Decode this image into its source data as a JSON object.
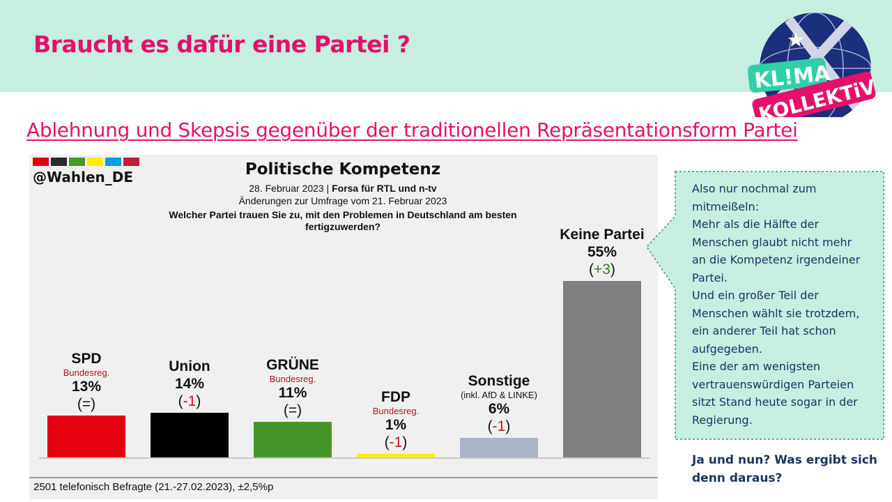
{
  "slide": {
    "title": "Braucht es dafür eine Partei ?",
    "subtitle": "Ablehnung und Skepsis gegenüber der traditionellen Repräsentationsform Partei",
    "logo_line1": "KL!MA",
    "logo_line2": "KOLLEKTiV",
    "callout_lines": [
      "Also nur nochmal zum",
      "mitmeißeln:",
      "Mehr als die Hälfte der",
      "Menschen glaubt nicht mehr",
      "an die Kompetenz irgendeiner",
      "Partei.",
      "Und ein großer Teil der",
      "Menschen wählt sie trotzdem,",
      "ein anderer Teil hat schon",
      "aufgegeben.",
      "Eine der am wenigsten",
      "vertrauenswürdigen Parteien",
      "sitzt Stand heute sogar in der",
      "Regierung."
    ],
    "final_question": "Ja und nun? Was ergibt sich denn daraus?"
  },
  "chart_data": {
    "type": "bar",
    "handle": "@Wahlen_DE",
    "flag_colors": [
      "#e3000f",
      "#2b2b2b",
      "#46962b",
      "#ffed00",
      "#009ee0",
      "#be1e3c"
    ],
    "title": "Politische Kompetenz",
    "date": "28. Februar 2023",
    "source": "Forsa für RTL und n-tv",
    "change_note": "Änderungen zur Umfrage vom 21. Februar 2023",
    "question": "Welcher Partei trauen Sie zu, mit den Problemen in Deutschland am besten fertigzuwerden?",
    "footer": "2501 telefonisch Befragte (21.-27.02.2023), ±2,5%p",
    "ylim": [
      0,
      60
    ],
    "categories": [
      "SPD",
      "Union",
      "GRÜNE",
      "FDP",
      "Sonstige",
      "Keine Partei"
    ],
    "values": [
      13,
      14,
      11,
      1,
      6,
      55
    ],
    "value_labels": [
      "13%",
      "14%",
      "11%",
      "1%",
      "6%",
      "55%"
    ],
    "changes": [
      "=",
      "-1",
      "=",
      "-1",
      "-1",
      "+3"
    ],
    "sublabels": [
      "Bundesreg.",
      "",
      "Bundesreg.",
      "Bundesreg.",
      "(inkl. AfD & LINKE)",
      ""
    ],
    "colors": [
      "#e3000f",
      "#000000",
      "#46962b",
      "#ffed00",
      "#aab4c8",
      "#808080"
    ]
  }
}
